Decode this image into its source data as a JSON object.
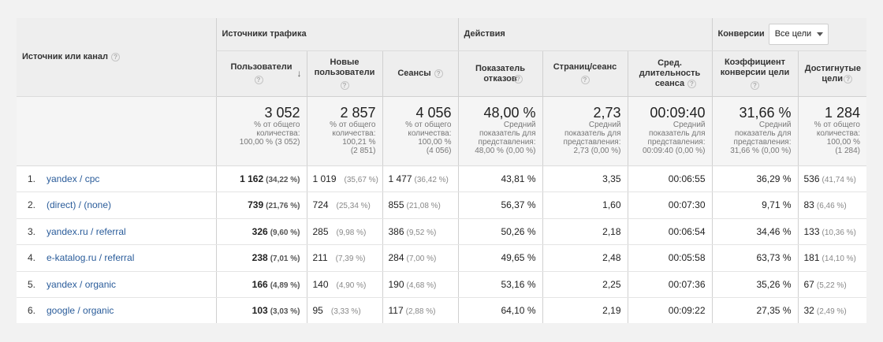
{
  "header": {
    "dimension_label": "Источник или канал",
    "groups": {
      "traffic": "Источники трафика",
      "actions": "Действия",
      "conversions": "Конверсии"
    },
    "goal_select": "Все цели"
  },
  "columns": {
    "users": "Пользователи",
    "new_users": "Новые пользователи",
    "sessions": "Сеансы",
    "bounce": "Показатель отказов",
    "pages": "Страниц/сеанс",
    "duration": "Сред. длительность сеанса",
    "conv_rate": "Коэффициент конверсии цели",
    "goals": "Достигнутые цели"
  },
  "totals": {
    "users": {
      "value": "3 052",
      "sub": [
        "% от общего",
        "количества:",
        "100,00 % (3 052)"
      ]
    },
    "new_users": {
      "value": "2 857",
      "sub": [
        "% от общего",
        "количества:",
        "100,21 %",
        "(2 851)"
      ]
    },
    "sessions": {
      "value": "4 056",
      "sub": [
        "% от общего",
        "количества:",
        "100,00 %",
        "(4 056)"
      ]
    },
    "bounce": {
      "value": "48,00 %",
      "sub": [
        "Средний",
        "показатель для",
        "представления:",
        "48,00 % (0,00 %)"
      ]
    },
    "pages": {
      "value": "2,73",
      "sub": [
        "Средний",
        "показатель для",
        "представления:",
        "2,73 (0,00 %)"
      ]
    },
    "duration": {
      "value": "00:09:40",
      "sub": [
        "Средний",
        "показатель для",
        "представления:",
        "00:09:40 (0,00 %)"
      ]
    },
    "conv_rate": {
      "value": "31,66 %",
      "sub": [
        "Средний",
        "показатель для",
        "представления:",
        "31,66 % (0,00 %)"
      ]
    },
    "goals": {
      "value": "1 284",
      "sub": [
        "% от общего",
        "количества:",
        "100,00 %",
        "(1 284)"
      ]
    }
  },
  "rows": [
    {
      "idx": "1.",
      "name": "yandex / cpc",
      "users": "1 162",
      "users_pct": "(34,22 %)",
      "new_users": "1 019",
      "new_users_pct": "(35,67 %)",
      "sessions": "1 477",
      "sessions_pct": "(36,42 %)",
      "bounce": "43,81 %",
      "pages": "3,35",
      "duration": "00:06:55",
      "conv_rate": "36,29 %",
      "goals": "536",
      "goals_pct": "(41,74 %)"
    },
    {
      "idx": "2.",
      "name": "(direct) / (none)",
      "users": "739",
      "users_pct": "(21,76 %)",
      "new_users": "724",
      "new_users_pct": "(25,34 %)",
      "sessions": "855",
      "sessions_pct": "(21,08 %)",
      "bounce": "56,37 %",
      "pages": "1,60",
      "duration": "00:07:30",
      "conv_rate": "9,71 %",
      "goals": "83",
      "goals_pct": "(6,46 %)"
    },
    {
      "idx": "3.",
      "name": "yandex.ru / referral",
      "users": "326",
      "users_pct": "(9,60 %)",
      "new_users": "285",
      "new_users_pct": "(9,98 %)",
      "sessions": "386",
      "sessions_pct": "(9,52 %)",
      "bounce": "50,26 %",
      "pages": "2,18",
      "duration": "00:06:54",
      "conv_rate": "34,46 %",
      "goals": "133",
      "goals_pct": "(10,36 %)"
    },
    {
      "idx": "4.",
      "name": "e-katalog.ru / referral",
      "users": "238",
      "users_pct": "(7,01 %)",
      "new_users": "211",
      "new_users_pct": "(7,39 %)",
      "sessions": "284",
      "sessions_pct": "(7,00 %)",
      "bounce": "49,65 %",
      "pages": "2,48",
      "duration": "00:05:58",
      "conv_rate": "63,73 %",
      "goals": "181",
      "goals_pct": "(14,10 %)"
    },
    {
      "idx": "5.",
      "name": "yandex / organic",
      "users": "166",
      "users_pct": "(4,89 %)",
      "new_users": "140",
      "new_users_pct": "(4,90 %)",
      "sessions": "190",
      "sessions_pct": "(4,68 %)",
      "bounce": "53,16 %",
      "pages": "2,25",
      "duration": "00:07:36",
      "conv_rate": "35,26 %",
      "goals": "67",
      "goals_pct": "(5,22 %)"
    },
    {
      "idx": "6.",
      "name": "google / organic",
      "users": "103",
      "users_pct": "(3,03 %)",
      "new_users": "95",
      "new_users_pct": "(3,33 %)",
      "sessions": "117",
      "sessions_pct": "(2,88 %)",
      "bounce": "64,10 %",
      "pages": "2,19",
      "duration": "00:09:22",
      "conv_rate": "27,35 %",
      "goals": "32",
      "goals_pct": "(2,49 %)"
    }
  ]
}
